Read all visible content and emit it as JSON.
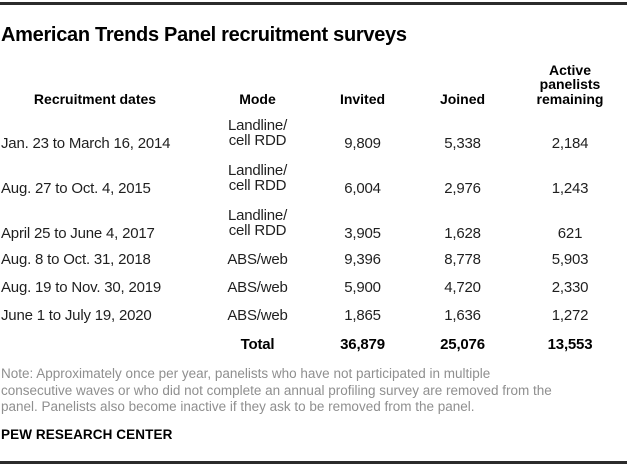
{
  "title": "American Trends Panel recruitment surveys",
  "colors": {
    "rule": "#2b2b2b",
    "text": "#1f1f1f",
    "note_gray": "#8f8f8f"
  },
  "table": {
    "headers": {
      "dates": "Recruitment dates",
      "mode": "Mode",
      "invited": "Invited",
      "joined": "Joined",
      "remaining": "Active panelists remaining"
    },
    "rows": [
      {
        "dates": "Jan. 23 to March 16, 2014",
        "mode": "Landline/\ncell RDD",
        "invited": "9,809",
        "joined": "5,338",
        "remaining": "2,184"
      },
      {
        "dates": "Aug. 27 to Oct. 4, 2015",
        "mode": "Landline/\ncell RDD",
        "invited": "6,004",
        "joined": "2,976",
        "remaining": "1,243"
      },
      {
        "dates": "April 25 to June 4, 2017",
        "mode": "Landline/\ncell RDD",
        "invited": "3,905",
        "joined": "1,628",
        "remaining": "621"
      },
      {
        "dates": "Aug. 8 to Oct. 31, 2018",
        "mode": "ABS/web",
        "invited": "9,396",
        "joined": "8,778",
        "remaining": "5,903"
      },
      {
        "dates": "Aug. 19 to Nov. 30, 2019",
        "mode": "ABS/web",
        "invited": "5,900",
        "joined": "4,720",
        "remaining": "2,330"
      },
      {
        "dates": "June 1 to July 19, 2020",
        "mode": "ABS/web",
        "invited": "1,865",
        "joined": "1,636",
        "remaining": "1,272"
      }
    ],
    "total": {
      "label": "Total",
      "invited": "36,879",
      "joined": "25,076",
      "remaining": "13,553"
    }
  },
  "note": {
    "lines": [
      "Note: Approximately once per year, panelists who have not participated in multiple",
      "consecutive waves or who did not complete an annual profiling survey are removed from the",
      "panel. Panelists also become inactive if they ask to be removed from the panel."
    ]
  },
  "footer": {
    "source": "PEW RESEARCH CENTER"
  },
  "chart_data": {
    "type": "table",
    "title": "American Trends Panel recruitment surveys",
    "columns": [
      "Recruitment dates",
      "Mode",
      "Invited",
      "Joined",
      "Active panelists remaining"
    ],
    "rows": [
      [
        "Jan. 23 to March 16, 2014",
        "Landline/cell RDD",
        9809,
        5338,
        2184
      ],
      [
        "Aug. 27 to Oct. 4, 2015",
        "Landline/cell RDD",
        6004,
        2976,
        1243
      ],
      [
        "April 25 to June 4, 2017",
        "Landline/cell RDD",
        3905,
        1628,
        621
      ],
      [
        "Aug. 8 to Oct. 31, 2018",
        "ABS/web",
        9396,
        8778,
        5903
      ],
      [
        "Aug. 19 to Nov. 30, 2019",
        "ABS/web",
        5900,
        4720,
        2330
      ],
      [
        "June 1 to July 19, 2020",
        "ABS/web",
        1865,
        1636,
        1272
      ]
    ],
    "total_row": [
      "",
      "Total",
      36879,
      25076,
      13553
    ],
    "note": "Note: Approximately once per year, panelists who have not participated in multiple consecutive waves or who did not complete an annual profiling survey are removed from the panel. Panelists also become inactive if they ask to be removed from the panel.",
    "source": "PEW RESEARCH CENTER"
  }
}
